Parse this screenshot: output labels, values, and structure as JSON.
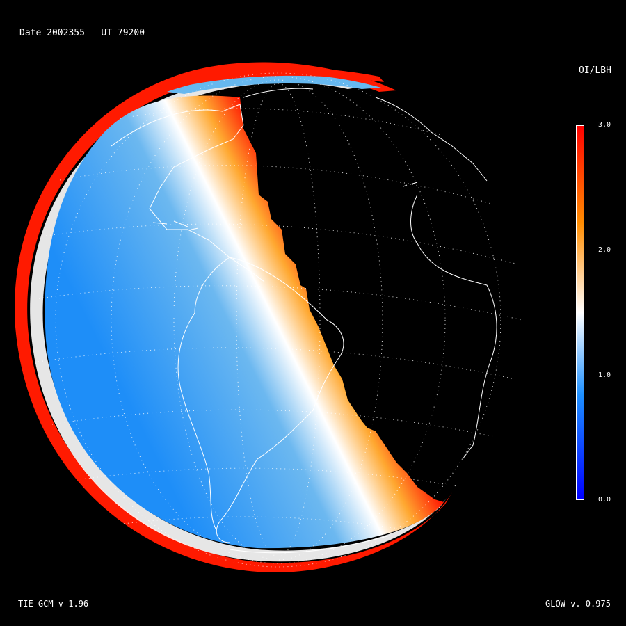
{
  "header": {
    "date_label": "Date 2002355",
    "ut_label": "UT 79200"
  },
  "footer": {
    "left_model": "TIE-GCM v 1.96",
    "right_model": "GLOW v. 0.975"
  },
  "colorbar": {
    "title": "OI/LBH",
    "ticks": [
      "3.0",
      "2.0",
      "1.0",
      "0.0"
    ],
    "range": [
      0.0,
      3.0
    ],
    "colors": {
      "low": "#0000ff",
      "mid_low": "#1e90ff",
      "mid": "#ffffff",
      "mid_high": "#ff8c00",
      "high": "#ff0000"
    }
  },
  "map": {
    "projection": "orthographic",
    "graticule": "dotted",
    "night_side_color": "#000000",
    "coastline_color": "#ffffff"
  }
}
